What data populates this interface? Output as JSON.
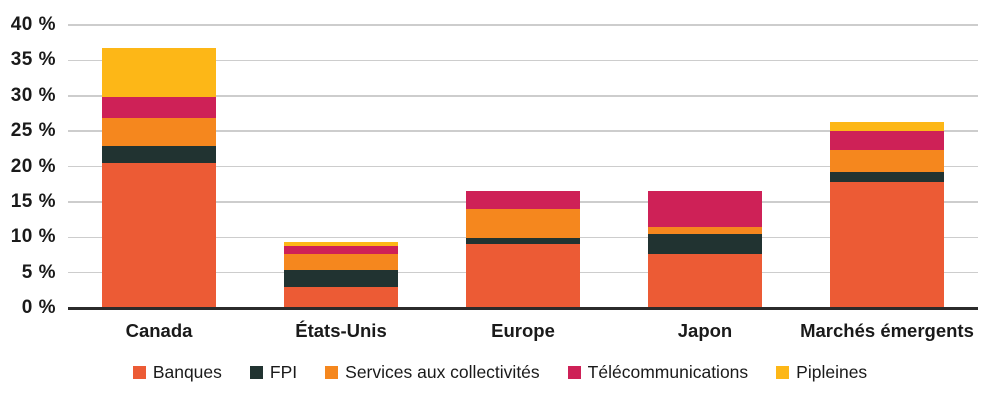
{
  "chart_data": {
    "type": "bar",
    "stacked": true,
    "title": "",
    "xlabel": "",
    "ylabel": "",
    "categories": [
      "Canada",
      "États-Unis",
      "Europe",
      "Japon",
      "Marchés émergents"
    ],
    "series": [
      {
        "name": "Banques",
        "color": "#EC5B35",
        "values": [
          20.5,
          3.0,
          9.0,
          7.7,
          17.8
        ]
      },
      {
        "name": "FPI",
        "color": "#213331",
        "values": [
          2.4,
          2.4,
          0.9,
          2.7,
          1.4
        ]
      },
      {
        "name": "Services aux collectivités",
        "color": "#F5871E",
        "values": [
          4.0,
          2.3,
          4.1,
          1.1,
          3.1
        ]
      },
      {
        "name": "Télécommunications",
        "color": "#CE2157",
        "values": [
          2.9,
          1.0,
          2.5,
          5.0,
          2.7
        ]
      },
      {
        "name": "Pipleines",
        "color": "#FDB717",
        "values": [
          6.9,
          0.6,
          0.0,
          0.0,
          1.3
        ]
      }
    ],
    "totals": [
      36.7,
      9.3,
      16.5,
      16.5,
      26.3
    ],
    "y_axis": {
      "min": 0,
      "max": 40,
      "ticks": [
        0,
        5,
        10,
        15,
        20,
        25,
        30,
        35,
        40
      ],
      "tick_labels": [
        "0 %",
        "5 %",
        "10 %",
        "15 %",
        "20 %",
        "25 %",
        "30 %",
        "35 %",
        "40 %"
      ]
    },
    "grid": true,
    "legend_position": "bottom"
  },
  "colors": {
    "grid_line": "#cdcdcd",
    "axis_line": "#2b2b2b",
    "text": "#1a1a1a",
    "background": "#ffffff"
  }
}
